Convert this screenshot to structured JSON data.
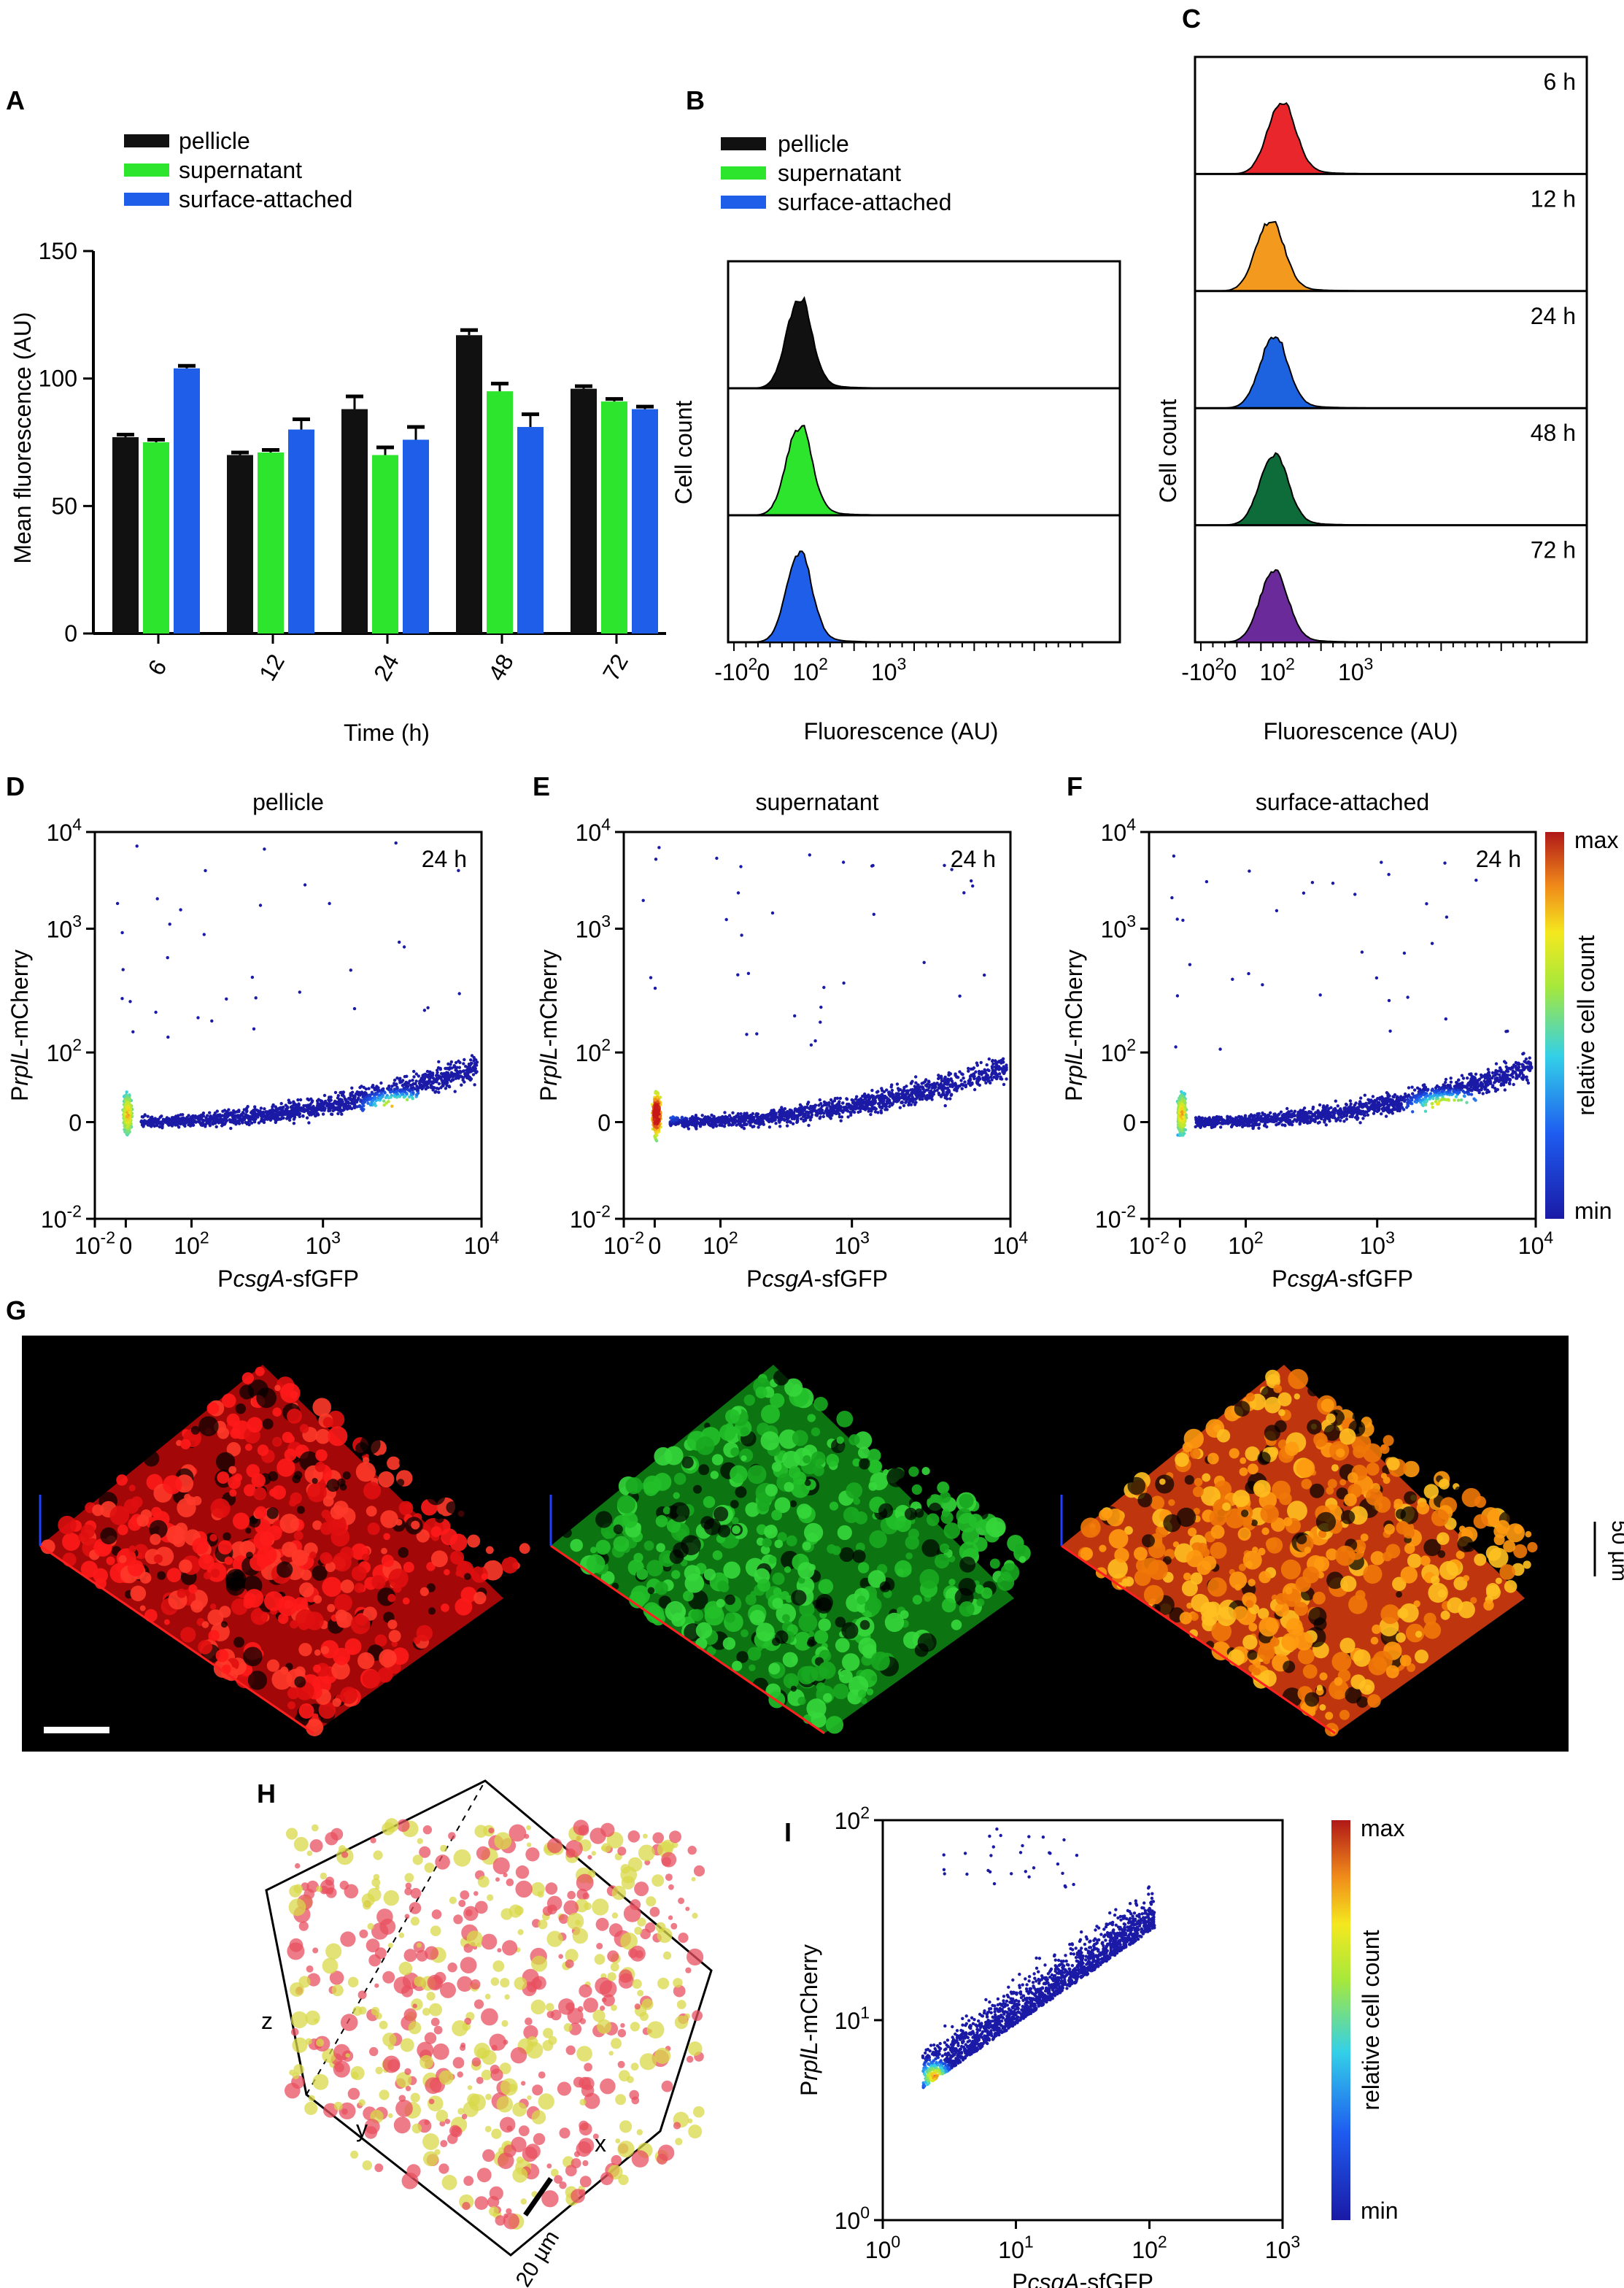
{
  "panel_letters": {
    "A": "A",
    "B": "B",
    "C": "C",
    "D": "D",
    "E": "E",
    "F": "F",
    "G": "G",
    "H": "H",
    "I": "I"
  },
  "colors": {
    "pellicle": "#111111",
    "supernatant": "#2ee52e",
    "surface": "#1e5ee8"
  },
  "chart_data": [
    {
      "id": "A",
      "type": "bar",
      "legend": [
        "pellicle",
        "supernatant",
        "surface-attached"
      ],
      "categories": [
        "6",
        "12",
        "24",
        "48",
        "72"
      ],
      "series": [
        {
          "name": "pellicle",
          "values": [
            77,
            70,
            88,
            117,
            96
          ],
          "errors": [
            1,
            1,
            5,
            2,
            1
          ]
        },
        {
          "name": "supernatant",
          "values": [
            75,
            71,
            70,
            95,
            91
          ],
          "errors": [
            1,
            1,
            3,
            3,
            1
          ]
        },
        {
          "name": "surface-attached",
          "values": [
            104,
            80,
            76,
            81,
            88
          ],
          "errors": [
            1,
            4,
            5,
            5,
            1
          ]
        }
      ],
      "ylim": [
        0,
        150
      ],
      "yticks": [
        "0",
        "50",
        "100",
        "150"
      ],
      "xlabel": "Time (h)",
      "ylabel": "Mean fluorescence (AU)"
    },
    {
      "id": "B",
      "type": "area",
      "legend": [
        "pellicle",
        "supernatant",
        "surface-attached"
      ],
      "ylabel": "Cell count",
      "xlabel": "Fluorescence (AU)",
      "xticks": [
        "-10",
        "0",
        "10",
        "10"
      ],
      "xtick_exps": [
        "2",
        "",
        "2",
        "3"
      ],
      "peak_position": 0.18
    },
    {
      "id": "C",
      "type": "area",
      "rows": [
        {
          "label": "6 h",
          "color": "#e8262c",
          "peak": 0.22
        },
        {
          "label": "12 h",
          "color": "#f39a1e",
          "peak": 0.19
        },
        {
          "label": "24 h",
          "color": "#1d63e0",
          "peak": 0.2
        },
        {
          "label": "48 h",
          "color": "#0e6b3a",
          "peak": 0.2
        },
        {
          "label": "72 h",
          "color": "#6b2a9a",
          "peak": 0.2
        }
      ],
      "ylabel": "Cell count",
      "xlabel": "Fluorescence (AU)",
      "xticks": [
        "-10",
        "0",
        "10",
        "10"
      ],
      "xtick_exps": [
        "2",
        "",
        "2",
        "3"
      ]
    },
    {
      "id": "DEF",
      "type": "scatter",
      "panels": [
        {
          "title": "pellicle",
          "time": "24 h",
          "hotspot": [
            2000,
            75
          ]
        },
        {
          "title": "supernatant",
          "time": "24 h",
          "hotspot": [
            0,
            60
          ]
        },
        {
          "title": "surface-attached",
          "time": "24 h",
          "hotspot": [
            2000,
            80
          ]
        }
      ],
      "xlabel_prefix": "P",
      "xlabel_gene": "csgA",
      "xlabel_suffix": "-sfGFP",
      "ylabel_prefix": "P",
      "ylabel_gene": "rplL",
      "ylabel_suffix": "-mCherry",
      "xticks": [
        {
          "b": "10",
          "e": "-2"
        },
        {
          "b": "0",
          "e": ""
        },
        {
          "b": "10",
          "e": "2"
        },
        {
          "b": "10",
          "e": "3"
        },
        {
          "b": "10",
          "e": "4"
        }
      ],
      "yticks": [
        {
          "b": "10",
          "e": "4"
        },
        {
          "b": "10",
          "e": "3"
        },
        {
          "b": "10",
          "e": "2"
        },
        {
          "b": "0",
          "e": ""
        },
        {
          "b": "10",
          "e": "-2"
        }
      ],
      "colorbar": {
        "max": "max",
        "min": "min",
        "label": "relative cell count"
      }
    },
    {
      "id": "I",
      "type": "scatter",
      "xlabel_prefix": "P",
      "xlabel_gene": "csgA",
      "xlabel_suffix": "-sfGFP",
      "ylabel_prefix": "P",
      "ylabel_gene": "rplL",
      "ylabel_suffix": "-mCherry",
      "xticks": [
        {
          "b": "10",
          "e": "0"
        },
        {
          "b": "10",
          "e": "1"
        },
        {
          "b": "10",
          "e": "2"
        },
        {
          "b": "10",
          "e": "3"
        }
      ],
      "yticks": [
        {
          "b": "10",
          "e": "2"
        },
        {
          "b": "10",
          "e": "1"
        },
        {
          "b": "10",
          "e": "0"
        }
      ],
      "colorbar": {
        "max": "max",
        "min": "min",
        "label": "relative cell count"
      }
    }
  ],
  "panel_G": {
    "scale_label": "50 µm"
  },
  "panel_H": {
    "axes": {
      "x": "x",
      "y": "y",
      "z": "z"
    },
    "scale_label": "20 µm"
  }
}
